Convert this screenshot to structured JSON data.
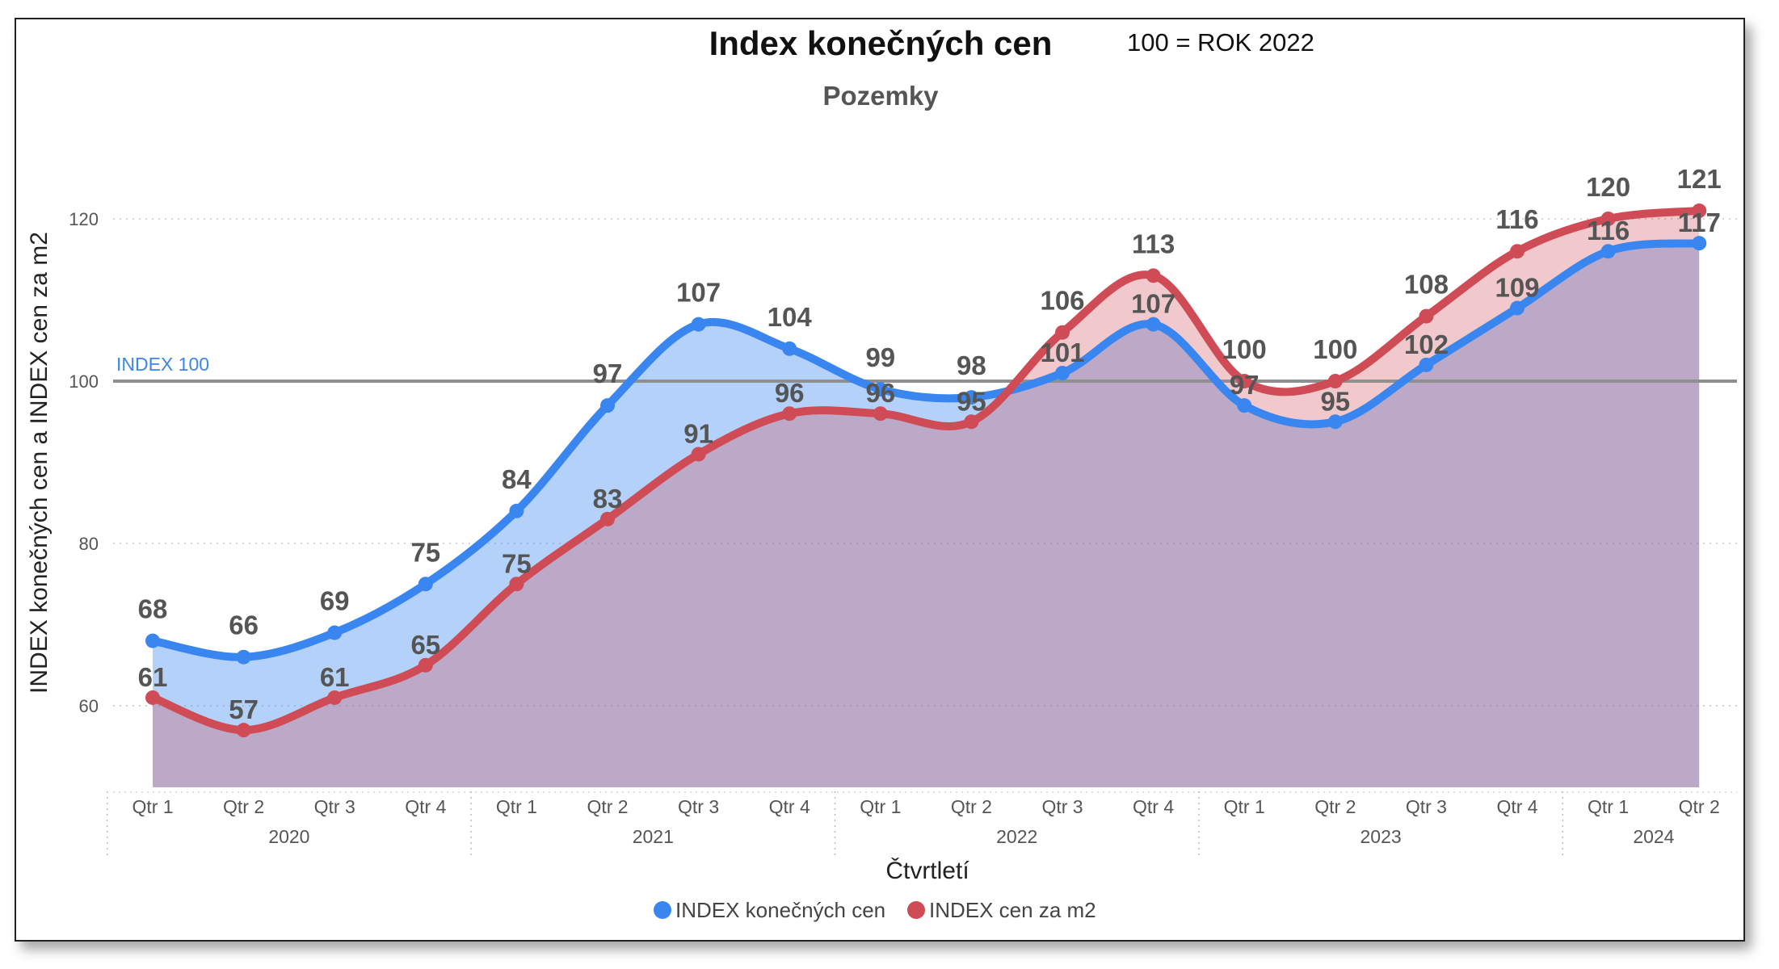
{
  "chart_data": {
    "type": "area",
    "title": "Index konečných cen",
    "subtitle": "Pozemky",
    "note": "100 = ROK 2022",
    "xlabel": "Čtvrtletí",
    "ylabel": "INDEX konečných cen a INDEX cen za m2",
    "ylim": [
      50,
      130
    ],
    "yticks": [
      60,
      80,
      100,
      120
    ],
    "grid": true,
    "legend_position": "bottom",
    "reference_line": {
      "value": 100,
      "label": "INDEX 100"
    },
    "categories": [
      "Qtr 1",
      "Qtr 2",
      "Qtr 3",
      "Qtr 4",
      "Qtr 1",
      "Qtr 2",
      "Qtr 3",
      "Qtr 4",
      "Qtr 1",
      "Qtr 2",
      "Qtr 3",
      "Qtr 4",
      "Qtr 1",
      "Qtr 2",
      "Qtr 3",
      "Qtr 4",
      "Qtr 1",
      "Qtr 2"
    ],
    "years": [
      {
        "label": "2020",
        "count": 4
      },
      {
        "label": "2021",
        "count": 4
      },
      {
        "label": "2022",
        "count": 4
      },
      {
        "label": "2023",
        "count": 4
      },
      {
        "label": "2024",
        "count": 2
      }
    ],
    "series": [
      {
        "name": "INDEX konečných cen",
        "color": "#3a86f0",
        "values": [
          68,
          66,
          69,
          75,
          84,
          97,
          107,
          104,
          99,
          98,
          101,
          107,
          97,
          95,
          102,
          109,
          116,
          117
        ],
        "labels": [
          "68",
          "66",
          "69",
          "75",
          "84",
          "97",
          "107",
          "104",
          "99",
          "98",
          "101",
          "107",
          "97",
          "95",
          "102",
          "109",
          "116",
          "117"
        ]
      },
      {
        "name": "INDEX cen za m2",
        "color": "#cf4b55",
        "values": [
          61,
          57,
          61,
          65,
          75,
          83,
          91,
          96,
          96,
          95,
          106,
          113,
          100,
          100,
          108,
          116,
          120,
          121
        ],
        "labels": [
          "61",
          "57",
          "61",
          "65",
          "75",
          "83",
          "91",
          "96",
          "96",
          "95",
          "106",
          "113",
          "100",
          "100",
          "108",
          "116",
          "120",
          "121"
        ]
      }
    ]
  }
}
